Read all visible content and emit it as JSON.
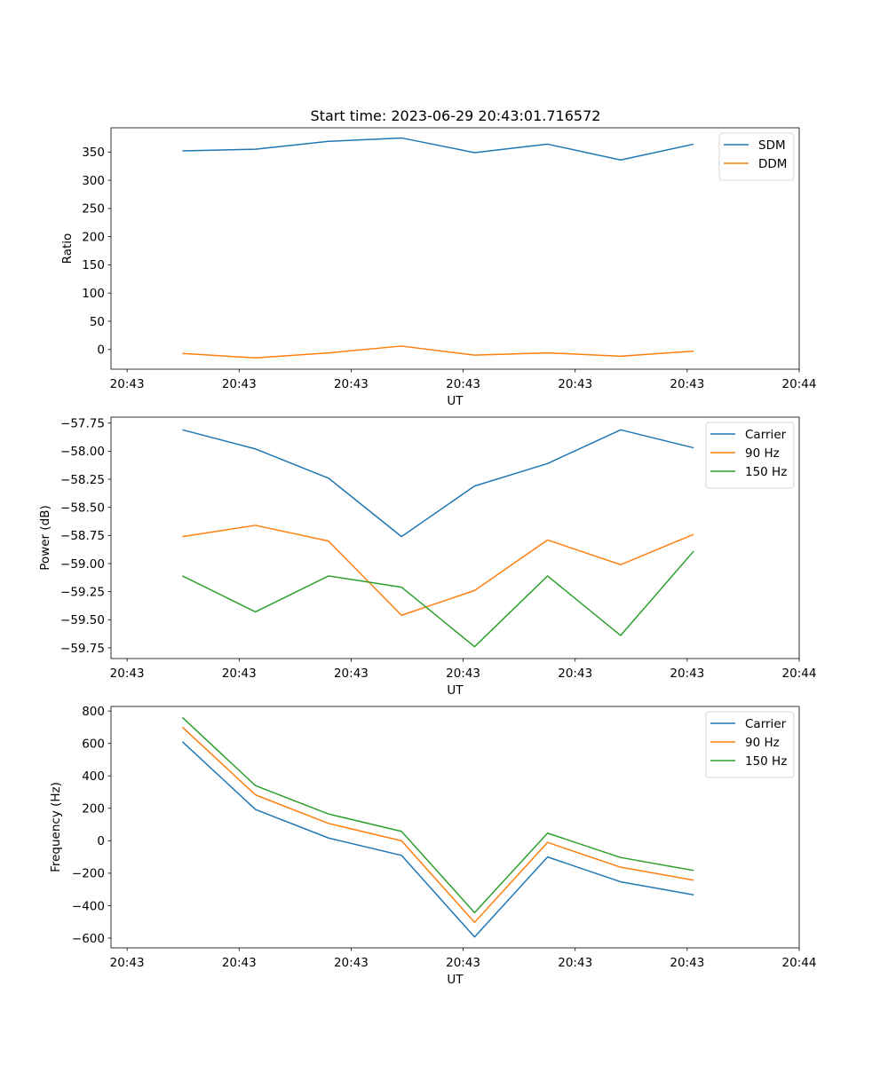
{
  "title": "Start time: 2023-06-29 20:43:01.716572",
  "colors": {
    "blue": "#1f77b4",
    "orange": "#ff7f0e",
    "green": "#2ca02c"
  },
  "chart_data": [
    {
      "type": "line",
      "x_tick_labels": [
        "20:43",
        "20:43",
        "20:43",
        "20:43",
        "20:43",
        "20:43",
        "20:44"
      ],
      "x_tick_values": [
        -0.18,
        1.35,
        2.88,
        4.41,
        5.94,
        7.47,
        9.0
      ],
      "xlim": [
        -0.4,
        9.0
      ],
      "xlabel": "UT",
      "ylabel": "Ratio",
      "ylim": [
        -35,
        393
      ],
      "y_ticks": [
        0,
        50,
        100,
        150,
        200,
        250,
        300,
        350
      ],
      "legend_position": "upper right",
      "x": [
        0.576,
        1.573,
        2.571,
        3.568,
        4.566,
        5.563,
        6.561,
        7.558
      ],
      "series": [
        {
          "name": "SDM",
          "color": "#1f77b4",
          "values": [
            352,
            355,
            369,
            375,
            349,
            364,
            336,
            364
          ]
        },
        {
          "name": "DDM",
          "color": "#ff7f0e",
          "values": [
            -7,
            -15,
            -6,
            6,
            -10,
            -6,
            -12,
            -3
          ]
        }
      ]
    },
    {
      "type": "line",
      "x_tick_labels": [
        "20:43",
        "20:43",
        "20:43",
        "20:43",
        "20:43",
        "20:43",
        "20:44"
      ],
      "x_tick_values": [
        -0.18,
        1.35,
        2.88,
        4.41,
        5.94,
        7.47,
        9.0
      ],
      "xlim": [
        -0.4,
        9.0
      ],
      "xlabel": "UT",
      "ylabel": "Power (dB)",
      "ylim": [
        -59.845,
        -57.697
      ],
      "y_ticks": [
        -57.75,
        -58.0,
        -58.25,
        -58.5,
        -58.75,
        -59.0,
        -59.25,
        -59.5,
        -59.75
      ],
      "y_tick_labels": [
        "−57.75",
        "−58.00",
        "−58.25",
        "−58.50",
        "−58.75",
        "−59.00",
        "−59.25",
        "−59.50",
        "−59.75"
      ],
      "legend_position": "upper right",
      "x": [
        0.576,
        1.573,
        2.571,
        3.568,
        4.566,
        5.563,
        6.561,
        7.558
      ],
      "series": [
        {
          "name": "Carrier",
          "color": "#1f77b4",
          "values": [
            -57.81,
            -57.98,
            -58.24,
            -58.76,
            -58.31,
            -58.11,
            -57.81,
            -57.97
          ]
        },
        {
          "name": "90 Hz",
          "color": "#ff7f0e",
          "values": [
            -58.76,
            -58.66,
            -58.8,
            -59.46,
            -59.24,
            -58.79,
            -59.01,
            -58.74
          ]
        },
        {
          "name": "150 Hz",
          "color": "#2ca02c",
          "values": [
            -59.11,
            -59.43,
            -59.11,
            -59.21,
            -59.74,
            -59.11,
            -59.64,
            -58.89
          ]
        }
      ]
    },
    {
      "type": "line",
      "x_tick_labels": [
        "20:43",
        "20:43",
        "20:43",
        "20:43",
        "20:43",
        "20:43",
        "20:44"
      ],
      "x_tick_values": [
        -0.18,
        1.35,
        2.88,
        4.41,
        5.94,
        7.47,
        9.0
      ],
      "xlim": [
        -0.4,
        9.0
      ],
      "xlabel": "UT",
      "ylabel": "Frequency (Hz)",
      "ylim": [
        -660,
        828
      ],
      "y_ticks": [
        800,
        600,
        400,
        200,
        0,
        -200,
        -400,
        -600
      ],
      "y_tick_labels": [
        "800",
        "600",
        "400",
        "200",
        "0",
        "−200",
        "−400",
        "−600"
      ],
      "legend_position": "upper right",
      "x": [
        0.576,
        1.573,
        2.571,
        3.568,
        4.566,
        5.563,
        6.561,
        7.558
      ],
      "series": [
        {
          "name": "Carrier",
          "color": "#1f77b4",
          "values": [
            610,
            193,
            17,
            -90,
            -593,
            -100,
            -253,
            -333
          ]
        },
        {
          "name": "90 Hz",
          "color": "#ff7f0e",
          "values": [
            700,
            283,
            107,
            0,
            -503,
            -10,
            -163,
            -243
          ]
        },
        {
          "name": "150 Hz",
          "color": "#2ca02c",
          "values": [
            760,
            340,
            165,
            58,
            -443,
            47,
            -103,
            -183
          ]
        }
      ]
    }
  ]
}
